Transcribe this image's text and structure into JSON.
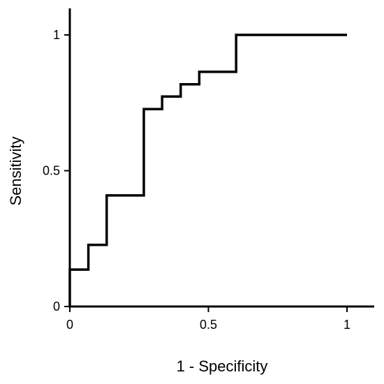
{
  "chart_data": {
    "type": "line",
    "title": "",
    "xlabel": "1 - Specificity",
    "ylabel": "Sensitivity",
    "xlim": [
      0,
      1
    ],
    "ylim": [
      0,
      1
    ],
    "xticks": [
      0,
      0.5,
      1
    ],
    "xtick_labels": [
      "0",
      "0.5",
      "1"
    ],
    "yticks": [
      0,
      0.5,
      1
    ],
    "ytick_labels": [
      "0",
      "0.5",
      "1"
    ],
    "grid": false,
    "legend": "none",
    "line_color": "#000000",
    "series": [
      {
        "step": "post",
        "x": [
          0,
          0,
          0.067,
          0.133,
          0.267,
          0.333,
          0.4,
          0.467,
          0.6,
          1
        ],
        "y": [
          0,
          0.136,
          0.227,
          0.409,
          0.727,
          0.773,
          0.818,
          0.864,
          1,
          1
        ]
      }
    ]
  }
}
